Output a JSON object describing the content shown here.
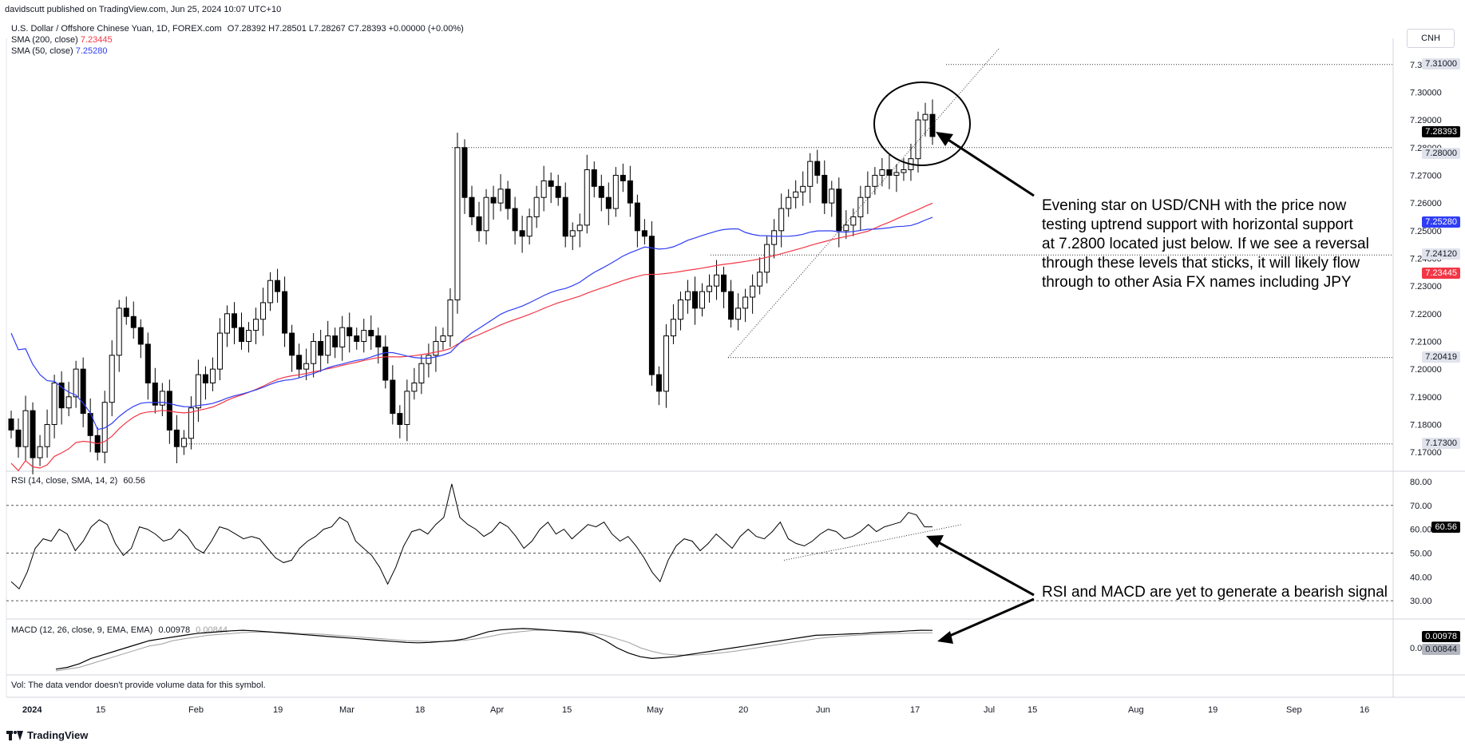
{
  "header": {
    "publisher": "davidscutt published on TradingView.com, Jun 25, 2024 10:07 UTC+10",
    "symbol_line": "U.S. Dollar / Offshore Chinese Yuan, 1D, FOREX.com",
    "ohlc": "O7.28392 H7.28501 L7.28267 C7.28393 +0.00000 (+0.00%)",
    "sma200_label": "SMA (200, close)",
    "sma200_value": "7.23445",
    "sma50_label": "SMA (50, close)",
    "sma50_value": "7.25280",
    "currency_button": "CNH"
  },
  "rsi_header": "RSI (14, close, SMA, 14, 2)",
  "rsi_value": "60.56",
  "macd_header": "MACD (12, 26, close, 9, EMA, EMA)",
  "macd_value": "0.00978",
  "macd_signal_value": "0.00844",
  "volume_note": "Vol: The data vendor doesn't provide volume data for this symbol.",
  "footer_brand": "TradingView",
  "colors": {
    "up": "#ffffff",
    "down": "#000000",
    "sma50": "#2f3df5",
    "sma200": "#f23645",
    "current_price_box": "#000000",
    "macd_line": "#000000",
    "signal_line": "#9e9e9e"
  },
  "annotations": {
    "main": "Evening star on USD/CNH with the price now testing uptrend support with horizontal support at 7.2800 located just below. If we see a reversal through these levels that sticks, it will likely flow through to other Asia FX names including JPY",
    "indicators": "RSI and MACD are yet to generate a bearish signal"
  },
  "chart_data": [
    {
      "type": "candlestick",
      "title": "U.S. Dollar / Offshore Chinese Yuan, 1D, FOREX.com",
      "x_tick_labels": [
        "2024",
        "15",
        "Feb",
        "19",
        "Mar",
        "18",
        "Apr",
        "15",
        "May",
        "20",
        "Jun",
        "17",
        "Jul",
        "15",
        "Aug",
        "19",
        "Sep",
        "16"
      ],
      "y_tick_labels": [
        "7.17000",
        "7.18000",
        "7.19000",
        "7.20000",
        "7.21000",
        "7.22000",
        "7.23000",
        "7.24000",
        "7.25000",
        "7.26000",
        "7.27000",
        "7.28000",
        "7.29000",
        "7.30000",
        "7.31000"
      ],
      "ylim": [
        7.166,
        7.316
      ],
      "price_labels": [
        {
          "value": "7.28393",
          "kind": "last"
        },
        {
          "value": "7.28000",
          "kind": "level"
        },
        {
          "value": "7.25280",
          "kind": "sma50"
        },
        {
          "value": "7.24120",
          "kind": "level"
        },
        {
          "value": "7.23445",
          "kind": "sma200"
        },
        {
          "value": "7.20419",
          "kind": "level"
        },
        {
          "value": "7.17300",
          "kind": "level"
        },
        {
          "value": "7.31000",
          "kind": "level"
        }
      ],
      "horizontal_levels": [
        7.31,
        7.28,
        7.2412,
        7.20419,
        7.173
      ],
      "close": [
        7.178,
        7.172,
        7.185,
        7.168,
        7.172,
        7.18,
        7.195,
        7.186,
        7.19,
        7.2,
        7.184,
        7.176,
        7.17,
        7.188,
        7.205,
        7.222,
        7.219,
        7.215,
        7.209,
        7.195,
        7.187,
        7.192,
        7.178,
        7.172,
        7.175,
        7.186,
        7.198,
        7.195,
        7.2,
        7.213,
        7.22,
        7.215,
        7.21,
        7.214,
        7.218,
        7.224,
        7.232,
        7.228,
        7.213,
        7.205,
        7.2,
        7.202,
        7.21,
        7.205,
        7.212,
        7.208,
        7.215,
        7.212,
        7.21,
        7.214,
        7.212,
        7.208,
        7.196,
        7.184,
        7.18,
        7.192,
        7.195,
        7.202,
        7.205,
        7.21,
        7.212,
        7.225,
        7.28,
        7.262,
        7.255,
        7.25,
        7.262,
        7.26,
        7.265,
        7.258,
        7.25,
        7.248,
        7.255,
        7.262,
        7.268,
        7.266,
        7.262,
        7.248,
        7.25,
        7.252,
        7.272,
        7.266,
        7.262,
        7.258,
        7.27,
        7.268,
        7.26,
        7.25,
        7.248,
        7.198,
        7.192,
        7.212,
        7.218,
        7.225,
        7.228,
        7.222,
        7.228,
        7.23,
        7.234,
        7.228,
        7.218,
        7.222,
        7.226,
        7.23,
        7.235,
        7.245,
        7.25,
        7.258,
        7.262,
        7.264,
        7.266,
        7.275,
        7.27,
        7.26,
        7.265,
        7.25,
        7.252,
        7.255,
        7.262,
        7.266,
        7.27,
        7.272,
        7.27,
        7.271,
        7.272,
        7.276,
        7.29,
        7.292,
        7.284
      ]
    },
    {
      "type": "line",
      "title": "RSI (14, close, SMA, 14, 2)",
      "y_tick_labels": [
        "30.00",
        "40.00",
        "50.00",
        "60.00",
        "70.00",
        "80.00"
      ],
      "ylim": [
        24,
        82
      ],
      "bands": [
        70,
        50,
        30
      ],
      "last_value": 60.56,
      "values": [
        38,
        35,
        42,
        52,
        56,
        55,
        60,
        58,
        51,
        55,
        61,
        64,
        62,
        54,
        49,
        52,
        61,
        60,
        58,
        55,
        56,
        60,
        57,
        52,
        50,
        55,
        61,
        60,
        58,
        56,
        57,
        56,
        52,
        48,
        46,
        47,
        52,
        55,
        57,
        60,
        61,
        65,
        63,
        55,
        52,
        49,
        44,
        37,
        44,
        53,
        59,
        60,
        58,
        62,
        65,
        79,
        65,
        62,
        60,
        57,
        59,
        63,
        61,
        57,
        52,
        55,
        60,
        63,
        58,
        60,
        56,
        59,
        62,
        61,
        63,
        58,
        55,
        57,
        53,
        48,
        42,
        38,
        47,
        53,
        56,
        55,
        51,
        54,
        58,
        55,
        52,
        57,
        60,
        57,
        56,
        59,
        63,
        56,
        54,
        53,
        55,
        58,
        60,
        59,
        56,
        57,
        59,
        62,
        59,
        61,
        62,
        63,
        67,
        66,
        61,
        61
      ]
    },
    {
      "type": "line",
      "title": "MACD (12, 26, close, 9, EMA, EMA)",
      "y_tick_labels": [
        "0.00978",
        "0.00844",
        "0.00000"
      ],
      "ylim": [
        -0.013,
        0.013
      ],
      "series": [
        {
          "name": "MACD",
          "last_value": 0.00978,
          "values": [
            -0.012,
            -0.011,
            -0.009,
            -0.006,
            -0.004,
            -0.002,
            0.0,
            0.002,
            0.004,
            0.005,
            0.006,
            0.007,
            0.008,
            0.0085,
            0.009,
            0.0095,
            0.0098,
            0.0095,
            0.009,
            0.0085,
            0.008,
            0.0075,
            0.007,
            0.0065,
            0.006,
            0.0055,
            0.005,
            0.0045,
            0.004,
            0.0035,
            0.003,
            0.0028,
            0.003,
            0.0035,
            0.004,
            0.005,
            0.007,
            0.009,
            0.01,
            0.0105,
            0.0108,
            0.0105,
            0.01,
            0.0095,
            0.009,
            0.0085,
            0.007,
            0.004,
            0.0,
            -0.003,
            -0.005,
            -0.006,
            -0.0055,
            -0.005,
            -0.004,
            -0.003,
            -0.002,
            -0.001,
            0.0,
            0.001,
            0.002,
            0.003,
            0.004,
            0.005,
            0.006,
            0.007,
            0.0072,
            0.0075,
            0.0078,
            0.008,
            0.0085,
            0.0088,
            0.009,
            0.0095,
            0.0098,
            0.00978
          ]
        },
        {
          "name": "Signal",
          "last_value": 0.00844,
          "values": [
            -0.013,
            -0.012,
            -0.011,
            -0.009,
            -0.007,
            -0.005,
            -0.003,
            -0.001,
            0.001,
            0.002,
            0.004,
            0.005,
            0.006,
            0.007,
            0.0075,
            0.008,
            0.0085,
            0.0088,
            0.0088,
            0.0087,
            0.0085,
            0.008,
            0.0078,
            0.0075,
            0.007,
            0.0065,
            0.006,
            0.0055,
            0.005,
            0.0045,
            0.004,
            0.0038,
            0.0036,
            0.0036,
            0.0038,
            0.0042,
            0.005,
            0.0062,
            0.0075,
            0.0085,
            0.0092,
            0.0098,
            0.0098,
            0.0096,
            0.0094,
            0.009,
            0.0082,
            0.007,
            0.005,
            0.003,
            0.0,
            -0.002,
            -0.0035,
            -0.004,
            -0.0042,
            -0.004,
            -0.0035,
            -0.0028,
            -0.002,
            -0.001,
            0.0,
            0.001,
            0.002,
            0.003,
            0.004,
            0.005,
            0.0058,
            0.0064,
            0.0068,
            0.0072,
            0.0075,
            0.0078,
            0.008,
            0.0082,
            0.0083,
            0.00844
          ]
        }
      ]
    }
  ]
}
